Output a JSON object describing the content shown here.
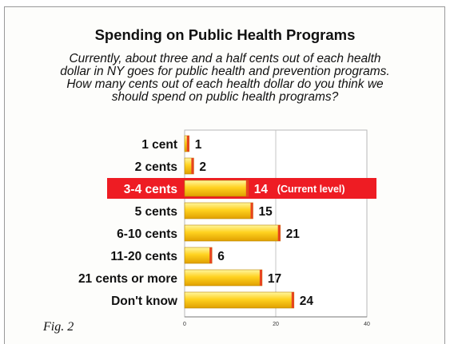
{
  "figure_label": "Fig. 2",
  "chart_data": {
    "type": "bar",
    "orientation": "horizontal",
    "title": "Spending on Public Health Programs",
    "subtitle": "Currently, about three and a half cents out of each health\ndollar in NY goes for public health and prevention programs.\nHow many cents out of each health dollar do you think we\nshould spend on public health programs?",
    "categories": [
      "1 cent",
      "2 cents",
      "3-4 cents",
      "5 cents",
      "6-10 cents",
      "11-20 cents",
      "21 cents or more",
      "Don't know"
    ],
    "values": [
      1,
      2,
      14,
      15,
      21,
      6,
      17,
      24
    ],
    "highlight": {
      "category": "3-4 cents",
      "annotation": "(Current level)",
      "color": "#ee1c23"
    },
    "xlim": [
      0,
      40
    ],
    "xticks": [
      "0",
      "20",
      "40"
    ],
    "grid": true,
    "colors": {
      "bar_top": "#fff7a0",
      "bar_mid": "#ffd21f",
      "bar_bottom": "#e0a000",
      "bar_end": "#e8431f"
    }
  }
}
